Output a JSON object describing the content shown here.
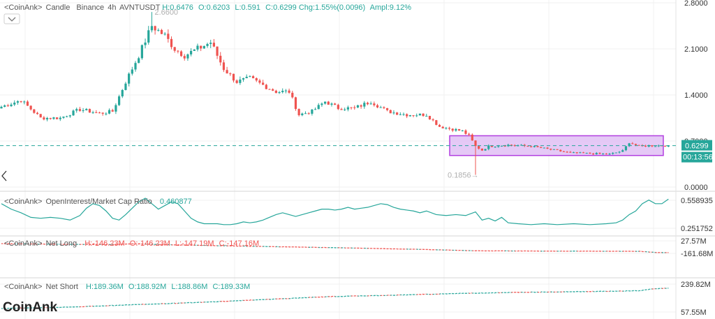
{
  "chart_data": [
    {
      "type": "candlestick",
      "legend": {
        "source": "<CoinAnk>",
        "name": "Candle",
        "exchange": "Binance",
        "interval": "4h",
        "symbol": "AVNTUSDT",
        "H": "H:0.6476",
        "O": "O:0.6203",
        "L": "L:0.591",
        "C": "C:0.6299",
        "chg": "Chg:1.55%(0.0096)",
        "ampl": "Ampl:9.12%"
      },
      "yticks": [
        "2.8000",
        "2.1000",
        "1.4000",
        "0.7000",
        "0.0000"
      ],
      "ylim": [
        0,
        2.8
      ],
      "last_price": "0.6299",
      "countdown": "00:13:56",
      "high_marker": "2.6600",
      "low_marker": "0.1856",
      "highlight_range": [
        0.48,
        0.78
      ],
      "highlight_color": "#e1bff4",
      "colors": {
        "up": "#26a69a",
        "down": "#ef5350"
      },
      "anchors": [
        [
          0,
          1.22
        ],
        [
          6,
          1.32
        ],
        [
          12,
          1.05
        ],
        [
          18,
          1.05
        ],
        [
          24,
          1.18
        ],
        [
          30,
          1.12
        ],
        [
          34,
          1.15
        ],
        [
          38,
          1.6
        ],
        [
          42,
          2.0
        ],
        [
          46,
          2.45
        ],
        [
          50,
          2.3
        ],
        [
          53,
          2.1
        ],
        [
          56,
          2.0
        ],
        [
          60,
          2.1
        ],
        [
          64,
          2.2
        ],
        [
          68,
          1.8
        ],
        [
          72,
          1.6
        ],
        [
          76,
          1.65
        ],
        [
          80,
          1.55
        ],
        [
          84,
          1.45
        ],
        [
          88,
          1.45
        ],
        [
          91,
          1.1
        ],
        [
          95,
          1.15
        ],
        [
          99,
          1.3
        ],
        [
          103,
          1.2
        ],
        [
          108,
          1.2
        ],
        [
          113,
          1.3
        ],
        [
          118,
          1.15
        ],
        [
          124,
          1.1
        ],
        [
          130,
          1.1
        ],
        [
          134,
          0.92
        ],
        [
          138,
          0.88
        ],
        [
          141,
          0.85
        ],
        [
          143,
          0.78
        ],
        [
          145,
          0.62
        ],
        [
          147,
          0.56
        ],
        [
          149,
          0.62
        ],
        [
          155,
          0.64
        ],
        [
          162,
          0.62
        ],
        [
          168,
          0.57
        ],
        [
          174,
          0.52
        ],
        [
          180,
          0.51
        ],
        [
          186,
          0.5
        ],
        [
          190,
          0.55
        ],
        [
          192,
          0.68
        ],
        [
          195,
          0.62
        ],
        [
          198,
          0.63
        ]
      ],
      "wicks": [
        [
          46,
          2.66
        ],
        [
          145,
          0.1856
        ]
      ]
    },
    {
      "type": "line",
      "legend": {
        "source": "<CoinAnk>",
        "name": "OpenInterest/Market Cap Ratio",
        "value": "0.460877"
      },
      "yticks": [
        "0.558935",
        "0.251752"
      ],
      "ylim": [
        0.23,
        0.56
      ],
      "color": "#26a69a",
      "points": [
        [
          0,
          0.5
        ],
        [
          3,
          0.44
        ],
        [
          6,
          0.4
        ],
        [
          9,
          0.35
        ],
        [
          12,
          0.34
        ],
        [
          15,
          0.35
        ],
        [
          18,
          0.34
        ],
        [
          21,
          0.32
        ],
        [
          24,
          0.37
        ],
        [
          26,
          0.45
        ],
        [
          28,
          0.5
        ],
        [
          30,
          0.48
        ],
        [
          32,
          0.42
        ],
        [
          34,
          0.34
        ],
        [
          36,
          0.32
        ],
        [
          38,
          0.38
        ],
        [
          40,
          0.45
        ],
        [
          42,
          0.52
        ],
        [
          44,
          0.56
        ],
        [
          46,
          0.5
        ],
        [
          48,
          0.44
        ],
        [
          50,
          0.48
        ],
        [
          52,
          0.52
        ],
        [
          54,
          0.5
        ],
        [
          56,
          0.42
        ],
        [
          58,
          0.34
        ],
        [
          60,
          0.3
        ],
        [
          62,
          0.28
        ],
        [
          64,
          0.28
        ],
        [
          66,
          0.28
        ],
        [
          68,
          0.27
        ],
        [
          70,
          0.27
        ],
        [
          72,
          0.28
        ],
        [
          74,
          0.3
        ],
        [
          76,
          0.29
        ],
        [
          78,
          0.3
        ],
        [
          80,
          0.32
        ],
        [
          82,
          0.35
        ],
        [
          84,
          0.38
        ],
        [
          86,
          0.4
        ],
        [
          88,
          0.38
        ],
        [
          90,
          0.36
        ],
        [
          92,
          0.38
        ],
        [
          94,
          0.4
        ],
        [
          96,
          0.42
        ],
        [
          98,
          0.44
        ],
        [
          100,
          0.44
        ],
        [
          102,
          0.43
        ],
        [
          104,
          0.44
        ],
        [
          106,
          0.46
        ],
        [
          108,
          0.44
        ],
        [
          110,
          0.45
        ],
        [
          112,
          0.46
        ],
        [
          114,
          0.48
        ],
        [
          116,
          0.5
        ],
        [
          118,
          0.49
        ],
        [
          120,
          0.46
        ],
        [
          122,
          0.44
        ],
        [
          124,
          0.43
        ],
        [
          126,
          0.42
        ],
        [
          128,
          0.4
        ],
        [
          130,
          0.42
        ],
        [
          133,
          0.38
        ],
        [
          136,
          0.37
        ],
        [
          139,
          0.38
        ],
        [
          142,
          0.37
        ],
        [
          145,
          0.41
        ],
        [
          147,
          0.32
        ],
        [
          149,
          0.34
        ],
        [
          151,
          0.31
        ],
        [
          153,
          0.35
        ],
        [
          155,
          0.29
        ],
        [
          158,
          0.28
        ],
        [
          162,
          0.27
        ],
        [
          166,
          0.28
        ],
        [
          170,
          0.27
        ],
        [
          175,
          0.28
        ],
        [
          180,
          0.27
        ],
        [
          185,
          0.28
        ],
        [
          188,
          0.29
        ],
        [
          190,
          0.32
        ],
        [
          192,
          0.38
        ],
        [
          194,
          0.42
        ],
        [
          196,
          0.5
        ],
        [
          198,
          0.54
        ],
        [
          200,
          0.5
        ],
        [
          202,
          0.5
        ],
        [
          204,
          0.55
        ]
      ]
    },
    {
      "type": "line",
      "legend": {
        "source": "<CoinAnk>",
        "name": "Net Long",
        "H": "H:-146.23M",
        "O": "O:-146.23M",
        "L": "L:-147.19M",
        "C": "C:-147.16M"
      },
      "yticks": [
        "27.57M",
        "-161.68M"
      ],
      "ylim": [
        -170,
        35
      ],
      "points": [
        [
          0,
          -20
        ],
        [
          20,
          -30
        ],
        [
          34,
          -34
        ],
        [
          40,
          -22
        ],
        [
          50,
          -35
        ],
        [
          70,
          -55
        ],
        [
          100,
          -80
        ],
        [
          130,
          -110
        ],
        [
          145,
          -130
        ],
        [
          170,
          -135
        ],
        [
          195,
          -138
        ],
        [
          200,
          -155
        ],
        [
          204,
          -158
        ]
      ]
    },
    {
      "type": "line",
      "legend": {
        "source": "<CoinAnk>",
        "name": "Net Short",
        "H": "H:189.36M",
        "O": "O:188.92M",
        "L": "L:188.86M",
        "C": "C:189.33M"
      },
      "yticks": [
        "239.82M",
        "57.55M"
      ],
      "ylim": [
        50,
        245
      ],
      "points": [
        [
          0,
          70
        ],
        [
          20,
          78
        ],
        [
          40,
          95
        ],
        [
          60,
          110
        ],
        [
          80,
          130
        ],
        [
          100,
          150
        ],
        [
          120,
          160
        ],
        [
          140,
          172
        ],
        [
          160,
          180
        ],
        [
          180,
          185
        ],
        [
          195,
          190
        ],
        [
          200,
          205
        ],
        [
          204,
          207
        ]
      ]
    }
  ],
  "watermark": "CoinAnk"
}
